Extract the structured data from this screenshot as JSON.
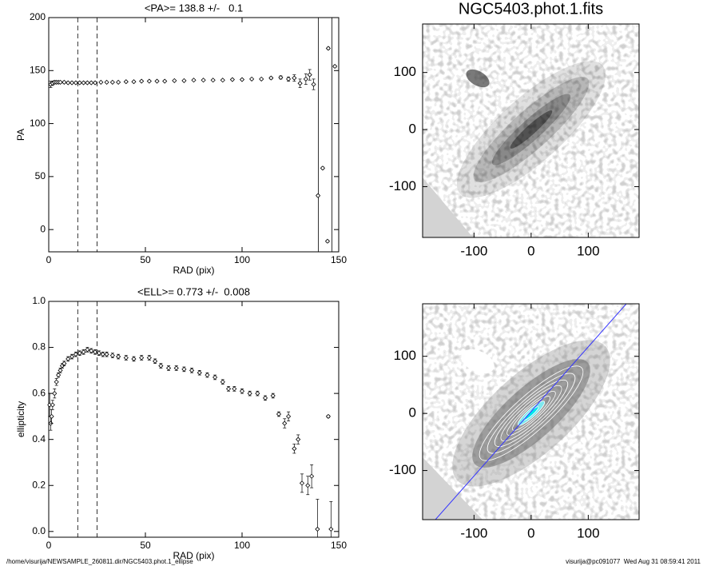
{
  "chart_data": [
    {
      "type": "errorbar",
      "title": "<PA>= 138.8 +/-   0.1",
      "x_label": "RAD (pix)",
      "y_label": "PA",
      "xlim": [
        0,
        150
      ],
      "ylim": [
        -21,
        200
      ],
      "xticks": [
        0,
        50,
        100,
        150
      ],
      "yticks": [
        0,
        50,
        100,
        150,
        200
      ],
      "dashed_lines": [
        15,
        25
      ],
      "solid_lines": [
        139.5,
        146.5
      ],
      "series": [
        {
          "color": "#000000",
          "x": [
            1,
            2,
            3,
            4,
            5,
            6,
            8,
            10,
            12,
            14,
            16,
            18,
            20,
            22,
            24,
            27,
            30,
            33,
            36,
            40,
            44,
            48,
            52,
            56,
            60,
            65,
            70,
            75,
            80,
            85,
            90,
            95,
            100,
            105,
            110,
            115,
            120,
            124,
            127,
            130,
            133,
            135,
            137,
            139.3,
            141.7,
            144.2,
            144.6,
            148
          ],
          "values": [
            137,
            138,
            139,
            139,
            139,
            139,
            139,
            138.5,
            138.5,
            138.5,
            138.5,
            138.5,
            138.5,
            138.5,
            138.5,
            139,
            139,
            139,
            139,
            139.5,
            139.5,
            140,
            140,
            140,
            140,
            140.5,
            140.5,
            141,
            141,
            141,
            141,
            141.5,
            141.5,
            142,
            142,
            143,
            143.5,
            142,
            143,
            138,
            142,
            146,
            137,
            32,
            58,
            -11,
            171,
            154
          ],
          "errors": [
            3,
            2,
            1.5,
            1,
            1,
            1,
            0.8,
            0.6,
            0.5,
            0.5,
            0.5,
            0.5,
            0.5,
            0.5,
            0.5,
            0.5,
            0.5,
            0.5,
            0.5,
            0.5,
            0.5,
            0.5,
            0.5,
            0.5,
            0.5,
            0.5,
            0.5,
            0.5,
            0.5,
            0.5,
            0.5,
            0.6,
            0.6,
            0.7,
            0.8,
            1,
            1.5,
            2,
            3,
            4,
            5,
            5,
            5,
            1,
            1,
            1,
            1,
            1
          ]
        }
      ]
    },
    {
      "type": "errorbar",
      "title": "<ELL>= 0.773 +/-  0.008",
      "x_label": "RAD (pix)",
      "y_label": "ellipticity",
      "xlim": [
        0,
        150
      ],
      "ylim": [
        -0.025,
        1.0
      ],
      "xticks": [
        0,
        50,
        100,
        150
      ],
      "yticks": [
        {
          "value": 0,
          "label": "0.0"
        },
        0.2,
        0.4,
        0.6,
        0.8,
        {
          "value": 1,
          "label": "1.0"
        }
      ],
      "dashed_lines": [
        15,
        25
      ],
      "series": [
        {
          "color": "#000000",
          "x": [
            0.5,
            1,
            1.5,
            2,
            3,
            4,
            5,
            6,
            7,
            8,
            10,
            12,
            14,
            16,
            18,
            20,
            22,
            24,
            26,
            28,
            30,
            33,
            36,
            40,
            44,
            48,
            52,
            55,
            58,
            62,
            66,
            70,
            74,
            78,
            82,
            86,
            90,
            93,
            96,
            100,
            104,
            108,
            112,
            116,
            119,
            122,
            124,
            127,
            129,
            131,
            134,
            136,
            139,
            144.6,
            146
          ],
          "values": [
            0.55,
            0.47,
            0.5,
            0.55,
            0.6,
            0.65,
            0.68,
            0.7,
            0.72,
            0.73,
            0.75,
            0.76,
            0.77,
            0.775,
            0.78,
            0.79,
            0.785,
            0.78,
            0.775,
            0.77,
            0.77,
            0.765,
            0.76,
            0.755,
            0.75,
            0.755,
            0.755,
            0.74,
            0.72,
            0.71,
            0.71,
            0.705,
            0.7,
            0.69,
            0.68,
            0.67,
            0.65,
            0.62,
            0.62,
            0.61,
            0.6,
            0.6,
            0.58,
            0.59,
            0.51,
            0.47,
            0.5,
            0.36,
            0.4,
            0.21,
            0.2,
            0.24,
            0.01,
            0.5,
            0.01
          ],
          "errors": [
            0.05,
            0.03,
            0.03,
            0.02,
            0.02,
            0.015,
            0.01,
            0.01,
            0.01,
            0.01,
            0.01,
            0.01,
            0.01,
            0.01,
            0.01,
            0.01,
            0.01,
            0.01,
            0.01,
            0.01,
            0.01,
            0.01,
            0.01,
            0.01,
            0.01,
            0.01,
            0.01,
            0.01,
            0.01,
            0.01,
            0.01,
            0.01,
            0.01,
            0.01,
            0.01,
            0.01,
            0.01,
            0.01,
            0.01,
            0.01,
            0.01,
            0.01,
            0.01,
            0.01,
            0.01,
            0.02,
            0.02,
            0.02,
            0.02,
            0.04,
            0.04,
            0.05,
            0.13,
            0.005,
            0.12
          ]
        }
      ]
    },
    {
      "type": "image",
      "title": "NGC5403.phot.1.fits",
      "xlim": [
        -190,
        189
      ],
      "ylim": [
        -189,
        185
      ],
      "xticks": [
        -100,
        0,
        100
      ],
      "yticks": [
        -100,
        0,
        100
      ]
    },
    {
      "type": "image",
      "xlim": [
        -190,
        189
      ],
      "ylim": [
        -186,
        192
      ],
      "xticks": [
        -100,
        0,
        100
      ],
      "yticks": [
        -100,
        0,
        100
      ]
    }
  ],
  "footer_left": "/home/visurija/NEWSAMPLE_260811.dir/NGC5403.phot.1_ellipse",
  "footer_right": "visurija@pc091077  Wed Aug 31 08:59:41 2011"
}
